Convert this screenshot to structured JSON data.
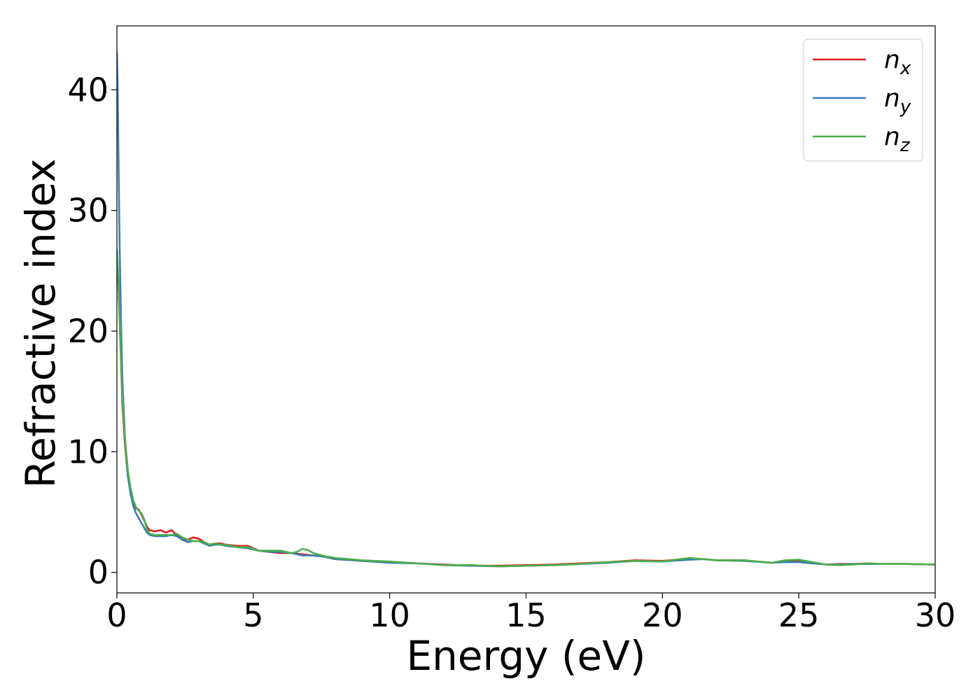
{
  "chart_data": {
    "type": "line",
    "title": "",
    "xlabel": "Energy (eV)",
    "ylabel": "Refractive index",
    "xlim": [
      0,
      30
    ],
    "ylim": [
      -1.7,
      45.3
    ],
    "xticks": [
      0,
      5,
      10,
      15,
      20,
      25,
      30
    ],
    "yticks": [
      0,
      10,
      20,
      30,
      40
    ],
    "xtick_labels": [
      "0",
      "5",
      "10",
      "15",
      "20",
      "25",
      "30"
    ],
    "ytick_labels": [
      "0",
      "10",
      "20",
      "30",
      "40"
    ],
    "grid": false,
    "legend_position": "top-right",
    "series": [
      {
        "name": "n_x",
        "label_main": "n",
        "label_sub": "x",
        "color": "#e41a1c",
        "x": [
          0,
          0.05,
          0.1,
          0.15,
          0.2,
          0.3,
          0.4,
          0.5,
          0.6,
          0.7,
          0.8,
          0.9,
          1.0,
          1.1,
          1.2,
          1.4,
          1.6,
          1.8,
          2.0,
          2.2,
          2.4,
          2.6,
          2.8,
          3.0,
          3.2,
          3.4,
          3.6,
          3.8,
          4.0,
          4.4,
          4.8,
          5.2,
          5.6,
          6.0,
          6.4,
          6.8,
          7.2,
          7.6,
          8.0,
          9.0,
          10.0,
          11.0,
          12.0,
          13.0,
          14.0,
          15.0,
          16.0,
          17.0,
          18.0,
          19.0,
          20.0,
          21.0,
          21.5,
          22.0,
          23.0,
          24.0,
          24.5,
          25.0,
          25.5,
          26.0,
          26.5,
          27.0,
          27.5,
          28.0,
          29.0,
          30.0
        ],
        "y": [
          25.5,
          24.0,
          21.0,
          17.5,
          14.0,
          10.5,
          8.0,
          6.8,
          5.8,
          5.3,
          5.2,
          4.8,
          4.3,
          3.8,
          3.5,
          3.4,
          3.5,
          3.3,
          3.5,
          3.1,
          2.7,
          2.7,
          2.9,
          2.8,
          2.5,
          2.3,
          2.4,
          2.4,
          2.3,
          2.2,
          2.2,
          1.8,
          1.7,
          1.6,
          1.6,
          1.5,
          1.4,
          1.3,
          1.1,
          0.95,
          0.85,
          0.75,
          0.65,
          0.55,
          0.55,
          0.6,
          0.65,
          0.75,
          0.85,
          1.0,
          0.95,
          1.15,
          1.1,
          1.0,
          1.0,
          0.8,
          0.9,
          0.95,
          0.8,
          0.65,
          0.7,
          0.7,
          0.75,
          0.7,
          0.7,
          0.65
        ]
      },
      {
        "name": "n_y",
        "label_main": "n",
        "label_sub": "y",
        "color": "#377eb8",
        "x": [
          0,
          0.03,
          0.06,
          0.1,
          0.15,
          0.2,
          0.3,
          0.4,
          0.5,
          0.6,
          0.7,
          0.8,
          0.9,
          1.0,
          1.1,
          1.2,
          1.4,
          1.6,
          1.8,
          2.0,
          2.2,
          2.4,
          2.6,
          2.8,
          3.0,
          3.2,
          3.4,
          3.6,
          3.8,
          4.0,
          4.4,
          4.8,
          5.2,
          5.6,
          6.0,
          6.4,
          6.8,
          7.2,
          7.6,
          8.0,
          9.0,
          10.0,
          11.0,
          12.0,
          13.0,
          14.0,
          15.0,
          16.0,
          17.0,
          18.0,
          19.0,
          20.0,
          21.0,
          21.5,
          22.0,
          23.0,
          24.0,
          24.5,
          25.0,
          25.5,
          26.0,
          26.5,
          27.0,
          27.5,
          28.0,
          29.0,
          30.0
        ],
        "y": [
          43.2,
          40.0,
          34.0,
          27.0,
          21.0,
          16.0,
          11.0,
          8.0,
          6.5,
          5.5,
          4.9,
          4.5,
          4.1,
          3.7,
          3.3,
          3.1,
          3.0,
          3.0,
          3.0,
          3.1,
          3.0,
          2.7,
          2.5,
          2.6,
          2.6,
          2.4,
          2.2,
          2.3,
          2.3,
          2.2,
          2.1,
          2.0,
          1.8,
          1.7,
          1.7,
          1.6,
          1.4,
          1.4,
          1.3,
          1.1,
          0.95,
          0.8,
          0.75,
          0.6,
          0.55,
          0.5,
          0.55,
          0.6,
          0.7,
          0.8,
          0.95,
          0.9,
          1.05,
          1.1,
          1.0,
          0.95,
          0.8,
          0.85,
          0.85,
          0.75,
          0.65,
          0.65,
          0.7,
          0.7,
          0.7,
          0.7,
          0.65
        ]
      },
      {
        "name": "n_z",
        "label_main": "n",
        "label_sub": "z",
        "color": "#4daf4a",
        "x": [
          0,
          0.05,
          0.1,
          0.15,
          0.2,
          0.3,
          0.4,
          0.5,
          0.6,
          0.7,
          0.8,
          0.9,
          1.0,
          1.1,
          1.2,
          1.4,
          1.6,
          1.8,
          2.0,
          2.2,
          2.4,
          2.6,
          2.8,
          3.0,
          3.2,
          3.4,
          3.6,
          3.8,
          4.0,
          4.4,
          4.8,
          5.2,
          5.6,
          6.0,
          6.4,
          6.6,
          6.8,
          7.0,
          7.2,
          7.6,
          8.0,
          9.0,
          10.0,
          11.0,
          12.0,
          13.0,
          14.0,
          15.0,
          16.0,
          17.0,
          18.0,
          19.0,
          20.0,
          21.0,
          21.5,
          22.0,
          23.0,
          24.0,
          24.5,
          25.0,
          25.5,
          26.0,
          26.5,
          27.0,
          27.5,
          28.0,
          29.0,
          30.0
        ],
        "y": [
          26.8,
          24.5,
          21.5,
          18.0,
          14.5,
          11.0,
          8.5,
          7.0,
          6.0,
          5.4,
          5.1,
          4.9,
          4.4,
          3.6,
          3.2,
          3.1,
          3.1,
          3.1,
          3.1,
          3.2,
          2.9,
          2.7,
          2.6,
          2.6,
          2.5,
          2.3,
          2.4,
          2.3,
          2.3,
          2.1,
          2.1,
          1.8,
          1.8,
          1.8,
          1.6,
          1.7,
          1.95,
          1.85,
          1.6,
          1.35,
          1.2,
          1.0,
          0.9,
          0.75,
          0.6,
          0.6,
          0.5,
          0.55,
          0.6,
          0.7,
          0.85,
          0.95,
          0.9,
          1.2,
          1.1,
          1.0,
          1.0,
          0.8,
          1.0,
          1.05,
          0.85,
          0.65,
          0.6,
          0.65,
          0.75,
          0.7,
          0.7,
          0.65
        ]
      }
    ]
  }
}
